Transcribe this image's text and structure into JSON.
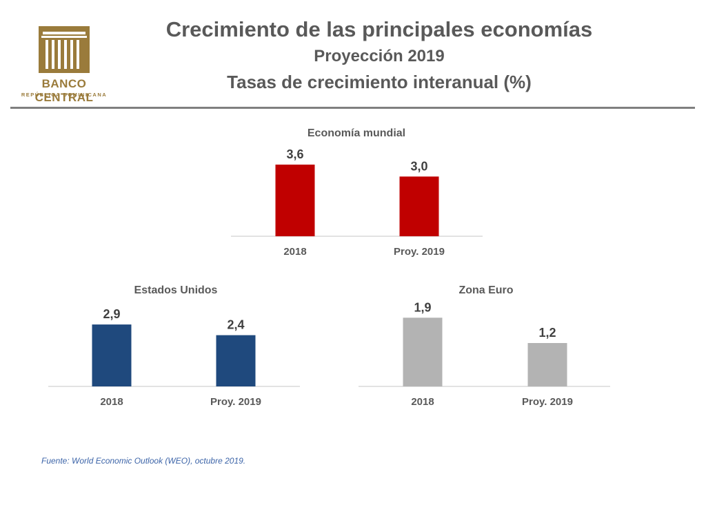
{
  "logo": {
    "name": "BANCO CENTRAL",
    "subtitle": "REPÚBLICA DOMINICANA",
    "color": "#9a7b3b"
  },
  "header": {
    "title": "Crecimiento de las principales economías",
    "subtitle": "Proyección 2019",
    "subtitle2": "Tasas de crecimiento interanual (%)"
  },
  "chart_data": [
    {
      "type": "bar",
      "title": "Economía mundial",
      "categories": [
        "2018",
        "Proy. 2019"
      ],
      "values": [
        3.6,
        3.0
      ],
      "value_labels": [
        "3,6",
        "3,0"
      ],
      "color": "#c00000"
    },
    {
      "type": "bar",
      "title": "Estados Unidos",
      "categories": [
        "2018",
        "Proy. 2019"
      ],
      "values": [
        2.9,
        2.4
      ],
      "value_labels": [
        "2,9",
        "2,4"
      ],
      "color": "#1f497d"
    },
    {
      "type": "bar",
      "title": "Zona Euro",
      "categories": [
        "2018",
        "Proy. 2019"
      ],
      "values": [
        1.9,
        1.2
      ],
      "value_labels": [
        "1,9",
        "1,2"
      ],
      "color": "#b3b3b3"
    }
  ],
  "source": "Fuente: World Economic Outlook (WEO), octubre 2019."
}
